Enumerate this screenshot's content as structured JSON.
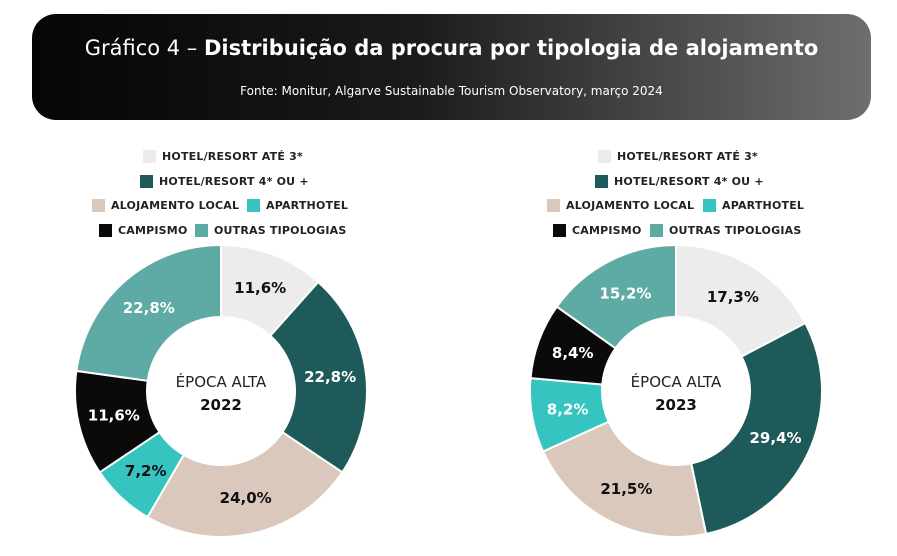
{
  "header": {
    "title_prefix": "Gráfico 4 – ",
    "title_main": "Distribuição da procura por tipologia de alojamento",
    "source": "Fonte: Monitur, Algarve Sustainable Tourism Observatory, março 2024"
  },
  "legend": [
    {
      "label": "HOTEL/RESORT ATÉ 3*",
      "color": "#ececec"
    },
    {
      "label": "HOTEL/RESORT 4* OU +",
      "color": "#1d5a59"
    },
    {
      "label": "ALOJAMENTO LOCAL",
      "color": "#d9c8bb"
    },
    {
      "label": "APARTHOTEL",
      "color": "#36c4c0"
    },
    {
      "label": "CAMPISMO",
      "color": "#0a0a0a"
    },
    {
      "label": "OUTRAS TIPOLOGIAS",
      "color": "#5eaaa5"
    }
  ],
  "chart_data": [
    {
      "type": "pie",
      "center_label_top": "ÉPOCA ALTA",
      "center_label_bottom": "2022",
      "slices": [
        {
          "category": "HOTEL/RESORT ATÉ 3*",
          "value": 11.6,
          "label": "11,6%",
          "color": "#ececec",
          "label_color": "#111111"
        },
        {
          "category": "HOTEL/RESORT 4* OU +",
          "value": 22.8,
          "label": "22,8%",
          "color": "#1d5a59",
          "label_color": "#ffffff"
        },
        {
          "category": "ALOJAMENTO LOCAL",
          "value": 24.0,
          "label": "24,0%",
          "color": "#d9c8bb",
          "label_color": "#111111"
        },
        {
          "category": "APARTHOTEL",
          "value": 7.2,
          "label": "7,2%",
          "color": "#36c4c0",
          "label_color": "#111111"
        },
        {
          "category": "CAMPISMO",
          "value": 11.6,
          "label": "11,6%",
          "color": "#0a0a0a",
          "label_color": "#ffffff"
        },
        {
          "category": "OUTRAS TIPOLOGIAS",
          "value": 22.8,
          "label": "22,8%",
          "color": "#5eaaa5",
          "label_color": "#ffffff"
        }
      ]
    },
    {
      "type": "pie",
      "center_label_top": "ÉPOCA ALTA",
      "center_label_bottom": "2023",
      "slices": [
        {
          "category": "HOTEL/RESORT ATÉ 3*",
          "value": 17.3,
          "label": "17,3%",
          "color": "#ececec",
          "label_color": "#111111"
        },
        {
          "category": "HOTEL/RESORT 4* OU +",
          "value": 29.4,
          "label": "29,4%",
          "color": "#1d5a59",
          "label_color": "#ffffff"
        },
        {
          "category": "ALOJAMENTO LOCAL",
          "value": 21.5,
          "label": "21,5%",
          "color": "#d9c8bb",
          "label_color": "#111111"
        },
        {
          "category": "APARTHOTEL",
          "value": 8.2,
          "label": "8,2%",
          "color": "#36c4c0",
          "label_color": "#ffffff"
        },
        {
          "category": "CAMPISMO",
          "value": 8.4,
          "label": "8,4%",
          "color": "#0a0a0a",
          "label_color": "#ffffff"
        },
        {
          "category": "OUTRAS TIPOLOGIAS",
          "value": 15.2,
          "label": "15,2%",
          "color": "#5eaaa5",
          "label_color": "#ffffff"
        }
      ]
    }
  ]
}
